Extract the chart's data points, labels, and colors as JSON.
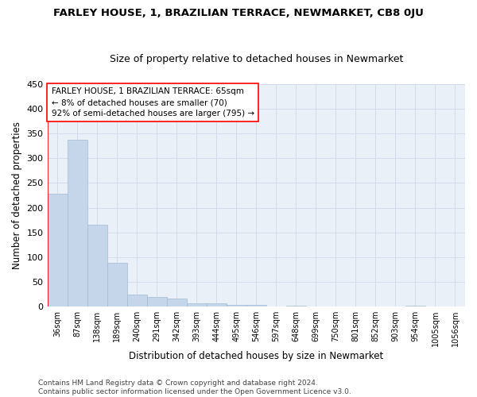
{
  "title": "FARLEY HOUSE, 1, BRAZILIAN TERRACE, NEWMARKET, CB8 0JU",
  "subtitle": "Size of property relative to detached houses in Newmarket",
  "xlabel": "Distribution of detached houses by size in Newmarket",
  "ylabel": "Number of detached properties",
  "bar_color": "#c5d6ea",
  "bar_edge_color": "#a0bcd4",
  "categories": [
    "36sqm",
    "87sqm",
    "138sqm",
    "189sqm",
    "240sqm",
    "291sqm",
    "342sqm",
    "393sqm",
    "444sqm",
    "495sqm",
    "546sqm",
    "597sqm",
    "648sqm",
    "699sqm",
    "750sqm",
    "801sqm",
    "852sqm",
    "903sqm",
    "954sqm",
    "1005sqm",
    "1056sqm"
  ],
  "values": [
    228,
    338,
    165,
    89,
    24,
    20,
    17,
    7,
    7,
    4,
    4,
    1,
    2,
    0,
    0,
    0,
    0,
    0,
    2,
    0,
    0
  ],
  "ylim": [
    0,
    450
  ],
  "yticks": [
    0,
    50,
    100,
    150,
    200,
    250,
    300,
    350,
    400,
    450
  ],
  "marker_label_line1": "FARLEY HOUSE, 1 BRAZILIAN TERRACE: 65sqm",
  "marker_label_line2": "← 8% of detached houses are smaller (70)",
  "marker_label_line3": "92% of semi-detached houses are larger (795) →",
  "footnote": "Contains HM Land Registry data © Crown copyright and database right 2024.\nContains public sector information licensed under the Open Government Licence v3.0.",
  "grid_color": "#d0d8e8",
  "background_color": "#eaf0f8"
}
